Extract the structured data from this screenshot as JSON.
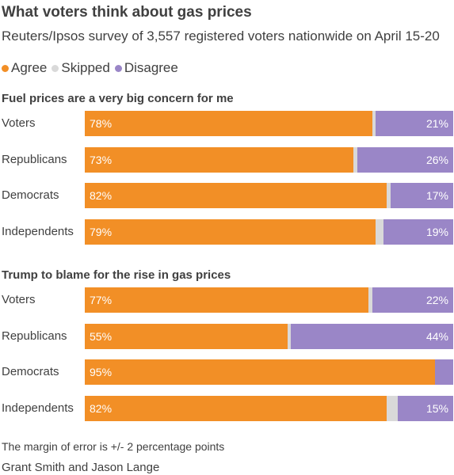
{
  "title": "What voters think about gas prices",
  "subtitle": "Reuters/Ipsos survey of 3,557 registered voters nationwide on April 15-20",
  "legend": [
    {
      "label": "Agree",
      "color": "#f28f26"
    },
    {
      "label": "Skipped",
      "color": "#d9d9d9"
    },
    {
      "label": "Disagree",
      "color": "#9a86c7"
    }
  ],
  "footer": {
    "note": "The margin of error is +/- 2 percentage points",
    "credit": "Grant Smith and Jason Lange"
  },
  "chart_data": [
    {
      "type": "bar",
      "title": "Fuel prices are a very big concern for me",
      "categories": [
        "Voters",
        "Republicans",
        "Democrats",
        "Independents"
      ],
      "series": [
        {
          "name": "Agree",
          "values": [
            78,
            73,
            82,
            79
          ],
          "labels": [
            "78%",
            "73%",
            "82%",
            "79%"
          ]
        },
        {
          "name": "Skipped",
          "values": [
            1,
            1,
            1,
            2
          ],
          "labels": [
            "",
            "",
            "",
            ""
          ]
        },
        {
          "name": "Disagree",
          "values": [
            21,
            26,
            17,
            19
          ],
          "labels": [
            "21%",
            "26%",
            "17%",
            "19%"
          ]
        }
      ],
      "xlim": [
        0,
        100
      ]
    },
    {
      "type": "bar",
      "title": "Trump to blame for the rise in gas prices",
      "categories": [
        "Voters",
        "Republicans",
        "Democrats",
        "Independents"
      ],
      "series": [
        {
          "name": "Agree",
          "values": [
            77,
            55,
            95,
            82
          ],
          "labels": [
            "77%",
            "55%",
            "95%",
            "82%"
          ]
        },
        {
          "name": "Skipped",
          "values": [
            1,
            1,
            0,
            3
          ],
          "labels": [
            "",
            "",
            "",
            ""
          ]
        },
        {
          "name": "Disagree",
          "values": [
            22,
            44,
            5,
            15
          ],
          "labels": [
            "22%",
            "44%",
            "",
            "15%"
          ]
        }
      ],
      "xlim": [
        0,
        100
      ]
    }
  ]
}
